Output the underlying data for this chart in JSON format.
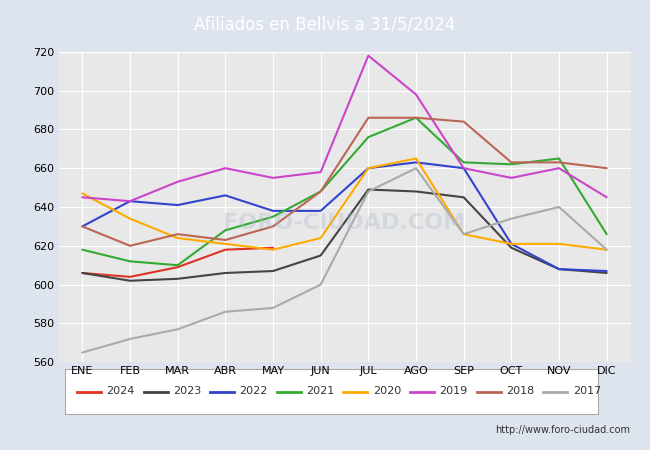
{
  "title": "Afiliados en Bellvís a 31/5/2024",
  "background_color": "#dde4ee",
  "plot_bg_color": "#e8e8e8",
  "header_color": "#6688bb",
  "bottom_bar_color": "#6688bb",
  "months": [
    "ENE",
    "FEB",
    "MAR",
    "ABR",
    "MAY",
    "JUN",
    "JUL",
    "AGO",
    "SEP",
    "OCT",
    "NOV",
    "DIC"
  ],
  "ylim": [
    560,
    720
  ],
  "yticks": [
    560,
    580,
    600,
    620,
    640,
    660,
    680,
    700,
    720
  ],
  "url": "http://www.foro-ciudad.com",
  "series": {
    "2024": {
      "color": "#dd3322",
      "data": [
        606,
        604,
        609,
        618,
        619,
        null,
        null,
        null,
        null,
        null,
        null,
        null
      ]
    },
    "2023": {
      "color": "#444444",
      "data": [
        606,
        602,
        603,
        606,
        607,
        615,
        649,
        648,
        645,
        619,
        608,
        606
      ]
    },
    "2022": {
      "color": "#3344cc",
      "data": [
        630,
        643,
        641,
        646,
        638,
        638,
        660,
        663,
        660,
        621,
        608,
        607
      ]
    },
    "2021": {
      "color": "#33aa33",
      "data": [
        618,
        612,
        610,
        628,
        635,
        648,
        676,
        686,
        663,
        662,
        665,
        626
      ]
    },
    "2020": {
      "color": "#ffaa00",
      "data": [
        647,
        634,
        624,
        621,
        618,
        624,
        660,
        665,
        626,
        621,
        621,
        618
      ]
    },
    "2019": {
      "color": "#cc44cc",
      "data": [
        645,
        643,
        653,
        660,
        655,
        658,
        718,
        698,
        660,
        655,
        660,
        645
      ]
    },
    "2018": {
      "color": "#bb6655",
      "data": [
        630,
        620,
        626,
        623,
        630,
        648,
        686,
        686,
        684,
        663,
        663,
        660
      ]
    },
    "2017": {
      "color": "#aaaaaa",
      "data": [
        565,
        572,
        577,
        586,
        588,
        600,
        648,
        660,
        626,
        634,
        640,
        618
      ]
    }
  },
  "legend_order": [
    "2024",
    "2023",
    "2022",
    "2021",
    "2020",
    "2019",
    "2018",
    "2017"
  ]
}
